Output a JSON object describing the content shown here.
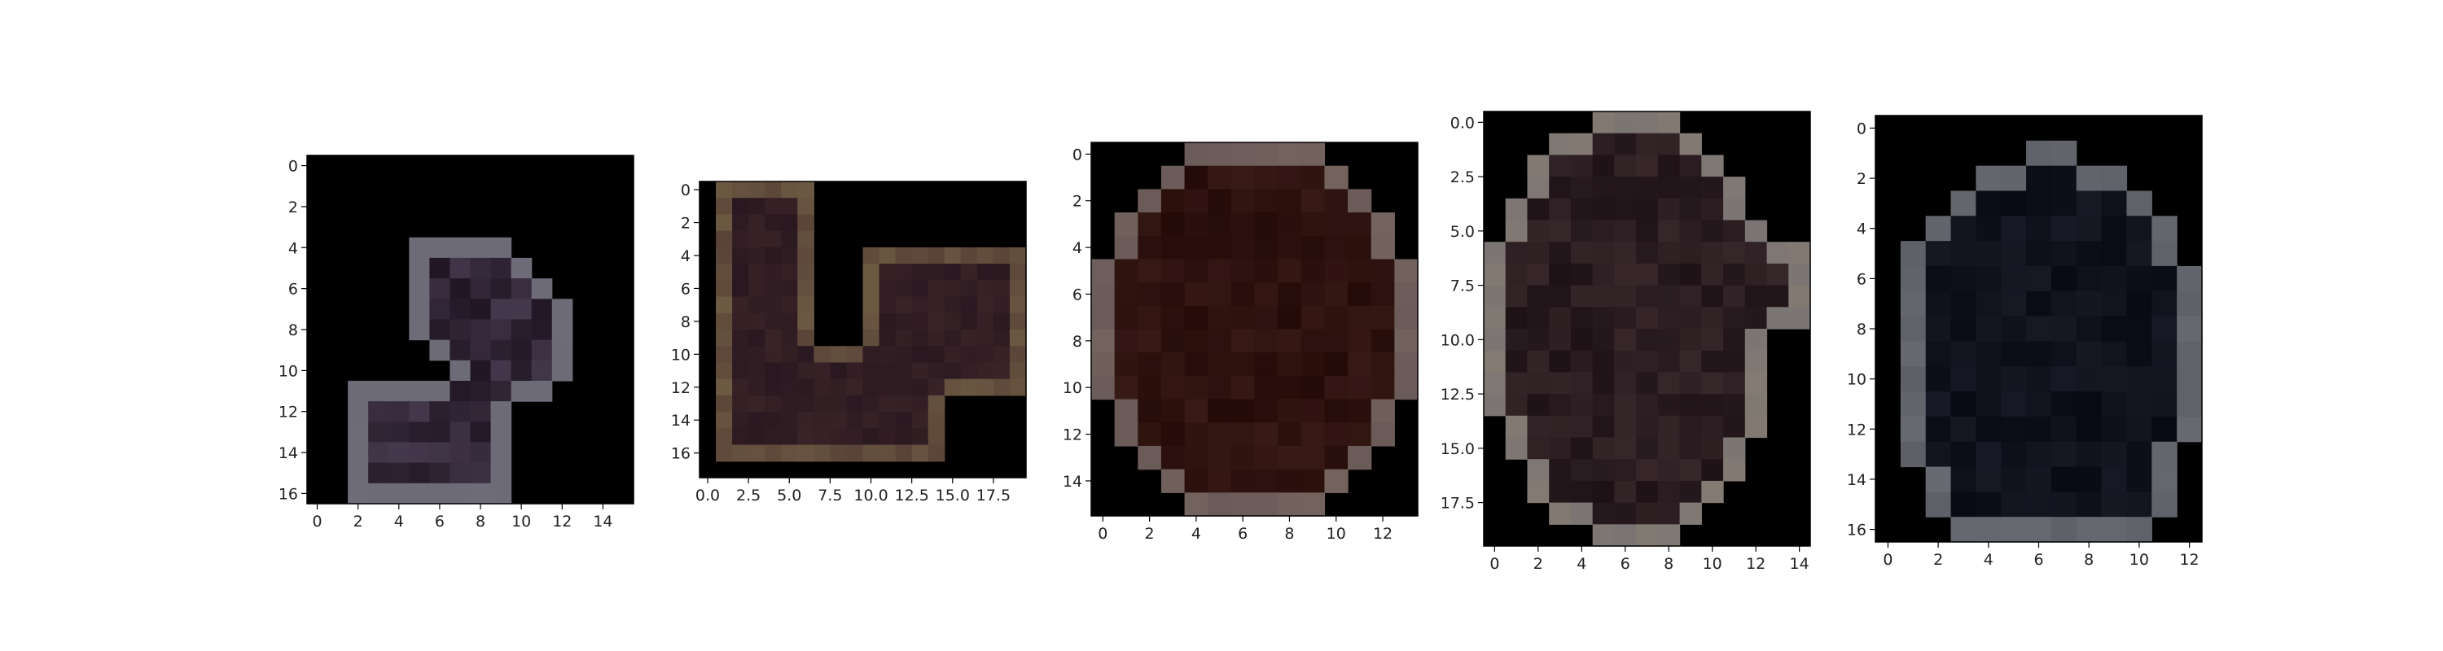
{
  "figure": {
    "background": "#ffffff",
    "panel_count": 5
  },
  "chart_data": [
    {
      "type": "heatmap",
      "title": "",
      "xlabel": "",
      "ylabel": "",
      "xlim": [
        -0.5,
        15.5
      ],
      "ylim": [
        16.5,
        -0.5
      ],
      "xticks": [
        0,
        2,
        4,
        6,
        8,
        10,
        12,
        14
      ],
      "xtick_labels": [
        "0",
        "2",
        "4",
        "6",
        "8",
        "10",
        "12",
        "14"
      ],
      "yticks": [
        0,
        2,
        4,
        6,
        8,
        10,
        12,
        14,
        16
      ],
      "ytick_labels": [
        "0",
        "2",
        "4",
        "6",
        "8",
        "10",
        "12",
        "14",
        "16"
      ],
      "content": "masked image crop, purple/grey object, black background",
      "palette": {
        "edge": "#6e6b78",
        "mid": "#4a3d52",
        "dark": "#1e1422",
        "light": "#6c6c78"
      }
    },
    {
      "type": "heatmap",
      "title": "",
      "xlabel": "",
      "ylabel": "",
      "xlim": [
        -0.5,
        19.5
      ],
      "ylim": [
        17.5,
        -0.5
      ],
      "xticks": [
        0,
        2.5,
        5,
        7.5,
        10,
        12.5,
        15,
        17.5
      ],
      "xtick_labels": [
        "0.0",
        "2.5",
        "5.0",
        "7.5",
        "10.0",
        "12.5",
        "15.0",
        "17.5"
      ],
      "yticks": [
        0,
        2,
        4,
        6,
        8,
        10,
        12,
        14,
        16
      ],
      "ytick_labels": [
        "0",
        "2",
        "4",
        "6",
        "8",
        "10",
        "12",
        "14",
        "16"
      ],
      "content": "masked image crop, brown/tan bent object, black background",
      "palette": {
        "edge": "#5a4438",
        "mid": "#3a2528",
        "dark": "#2a1820",
        "light": "#7a6a4a"
      }
    },
    {
      "type": "heatmap",
      "title": "",
      "xlabel": "",
      "ylabel": "",
      "xlim": [
        -0.5,
        13.5
      ],
      "ylim": [
        15.5,
        -0.5
      ],
      "xticks": [
        0,
        2,
        4,
        6,
        8,
        10,
        12
      ],
      "xtick_labels": [
        "0",
        "2",
        "4",
        "6",
        "8",
        "10",
        "12"
      ],
      "yticks": [
        0,
        2,
        4,
        6,
        8,
        10,
        12,
        14
      ],
      "ytick_labels": [
        "0",
        "2",
        "4",
        "6",
        "8",
        "10",
        "12",
        "14"
      ],
      "content": "masked image crop, dark red-brown round object, black background",
      "palette": {
        "edge": "#6a5a58",
        "mid": "#3a1c18",
        "dark": "#250b08",
        "light": "#7a6a62"
      }
    },
    {
      "type": "heatmap",
      "title": "",
      "xlabel": "",
      "ylabel": "",
      "xlim": [
        -0.5,
        14.5
      ],
      "ylim": [
        19.5,
        -0.5
      ],
      "xticks": [
        0,
        2,
        4,
        6,
        8,
        10,
        12,
        14
      ],
      "xtick_labels": [
        "0",
        "2",
        "4",
        "6",
        "8",
        "10",
        "12",
        "14"
      ],
      "yticks": [
        0,
        2.5,
        5,
        7.5,
        10,
        12.5,
        15,
        17.5
      ],
      "ytick_labels": [
        "0.0",
        "2.5",
        "5.0",
        "7.5",
        "10.0",
        "12.5",
        "15.0",
        "17.5"
      ],
      "content": "masked image crop, dark object with grey rim and tan patch, black background",
      "palette": {
        "edge": "#7a7474",
        "mid": "#3a2a2e",
        "dark": "#1e1216",
        "light": "#8a8070"
      }
    },
    {
      "type": "heatmap",
      "title": "",
      "xlabel": "",
      "ylabel": "",
      "xlim": [
        -0.5,
        12.5
      ],
      "ylim": [
        16.5,
        -0.5
      ],
      "xticks": [
        0,
        2,
        4,
        6,
        8,
        10,
        12
      ],
      "xtick_labels": [
        "0",
        "2",
        "4",
        "6",
        "8",
        "10",
        "12"
      ],
      "yticks": [
        0,
        2,
        4,
        6,
        8,
        10,
        12,
        14,
        16
      ],
      "ytick_labels": [
        "0",
        "2",
        "4",
        "6",
        "8",
        "10",
        "12",
        "14",
        "16"
      ],
      "content": "masked image crop, very dark navy object with grey edges, black background",
      "palette": {
        "edge": "#5e6068",
        "mid": "#1a1a28",
        "dark": "#0a0a14",
        "light": "#6e7078"
      }
    }
  ]
}
